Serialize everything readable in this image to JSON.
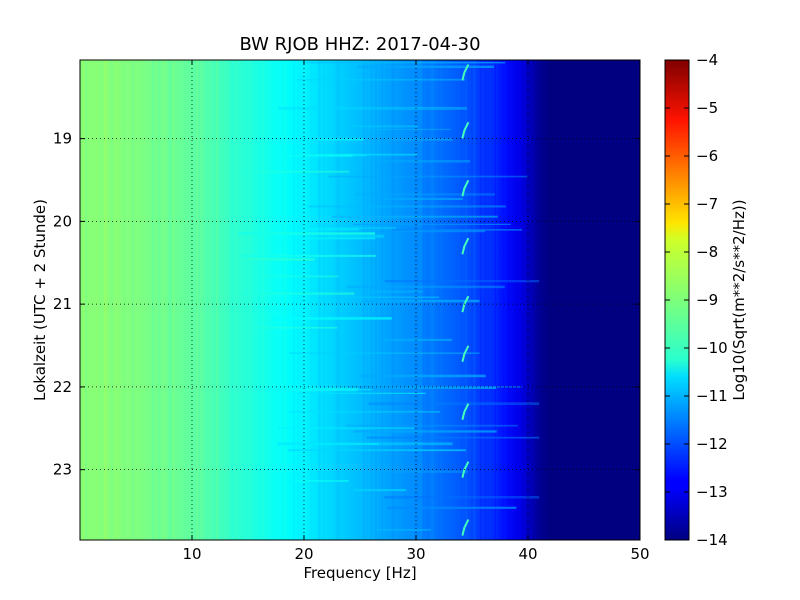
{
  "chart_data": {
    "type": "heatmap",
    "title": "BW RJOB HHZ: 2017-04-30",
    "xlabel": "Frequency [Hz]",
    "ylabel": "Lokalzeit (UTC + 2 Stunde)",
    "xlim": [
      0,
      50
    ],
    "ylim": [
      18.05,
      23.85
    ],
    "x_ticks": [
      10,
      20,
      30,
      40,
      50
    ],
    "y_ticks": [
      19,
      20,
      21,
      22,
      23
    ],
    "grid": true,
    "colorbar": {
      "label": "Log10(Sqrt(m**2/s**2/Hz))",
      "range": [
        -14,
        -4
      ],
      "ticks": [
        -4,
        -5,
        -6,
        -7,
        -8,
        -9,
        -10,
        -11,
        -12,
        -13,
        -14
      ],
      "colormap": "jet"
    },
    "spectral_profile": {
      "frequency_hz": [
        0,
        5,
        10,
        15,
        20,
        25,
        30,
        35,
        38,
        40,
        41,
        42,
        50
      ],
      "level_log10": [
        -8.9,
        -9.0,
        -9.3,
        -9.9,
        -10.4,
        -10.9,
        -11.4,
        -12.0,
        -12.6,
        -13.3,
        -13.8,
        -14.0,
        -14.0
      ]
    },
    "recurring_feature": {
      "frequency_hz": 34.5,
      "times_h": [
        18.2,
        18.9,
        19.6,
        20.3,
        21.0,
        21.6,
        22.3,
        23.0,
        23.7
      ]
    }
  }
}
